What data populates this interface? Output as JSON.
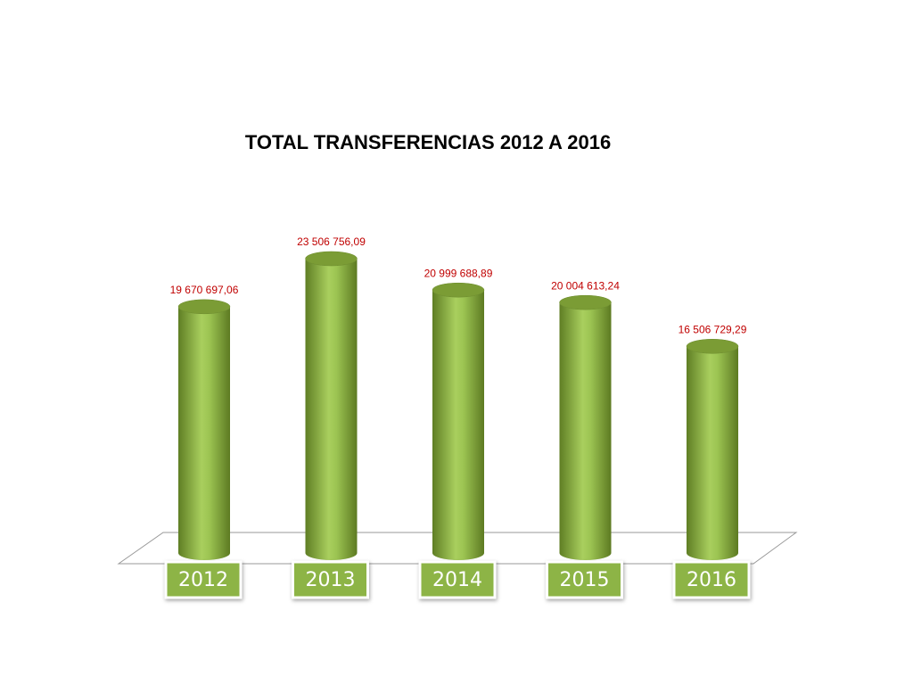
{
  "chart_data": {
    "type": "bar3d",
    "title": "TOTAL TRANSFERENCIAS  2012 A 2016",
    "categories": [
      "2012",
      "2013",
      "2014",
      "2015",
      "2016"
    ],
    "values": [
      19670697.06,
      23506756.09,
      20999688.89,
      20004613.24,
      16506729.29
    ],
    "value_labels": [
      "19 670 697,06",
      "23 506 756,09",
      "20 999 688,89",
      "20 004 613,24",
      "16 506 729,29"
    ],
    "color": "#8db446",
    "label_color": "#c00000"
  }
}
